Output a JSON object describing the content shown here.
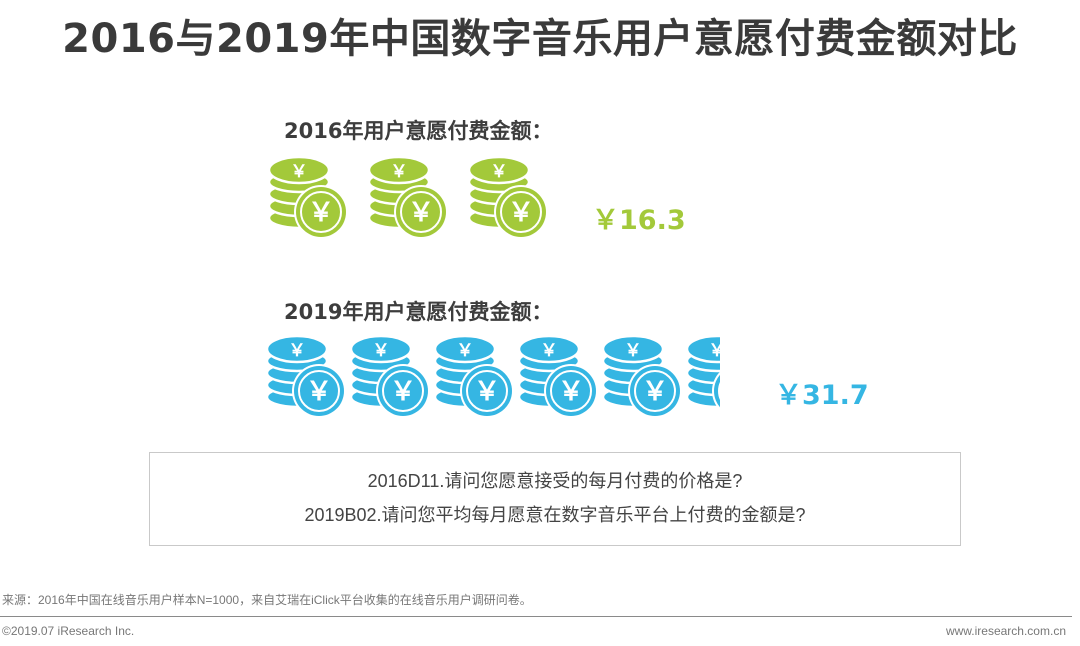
{
  "title": "2016与2019年中国数字音乐用户意愿付费金额对比",
  "chart_data": {
    "type": "pictograph",
    "series": [
      {
        "label": "2016年用户意愿付费金额：",
        "value": 16.3,
        "display": "￥16.3",
        "color": "#a3c93a",
        "icon_units": 3
      },
      {
        "label": "2019年用户意愿付费金额：",
        "value": 31.7,
        "display": "￥31.7",
        "color": "#35b6e3",
        "icon_units": 5.3
      }
    ],
    "coin_symbol": "￥",
    "icon": "coin-stack-icon"
  },
  "questions": [
    "2016D11.请问您愿意接受的每月付费的价格是?",
    "2019B02.请问您平均每月愿意在数字音乐平台上付费的金额是?"
  ],
  "footer": {
    "source": "来源：2016年中国在线音乐用户样本N=1000，来自艾瑞在iClick平台收集的在线音乐用户调研问卷。",
    "copyright": "©2019.07 iResearch Inc.",
    "website": "www.iresearch.com.cn"
  }
}
